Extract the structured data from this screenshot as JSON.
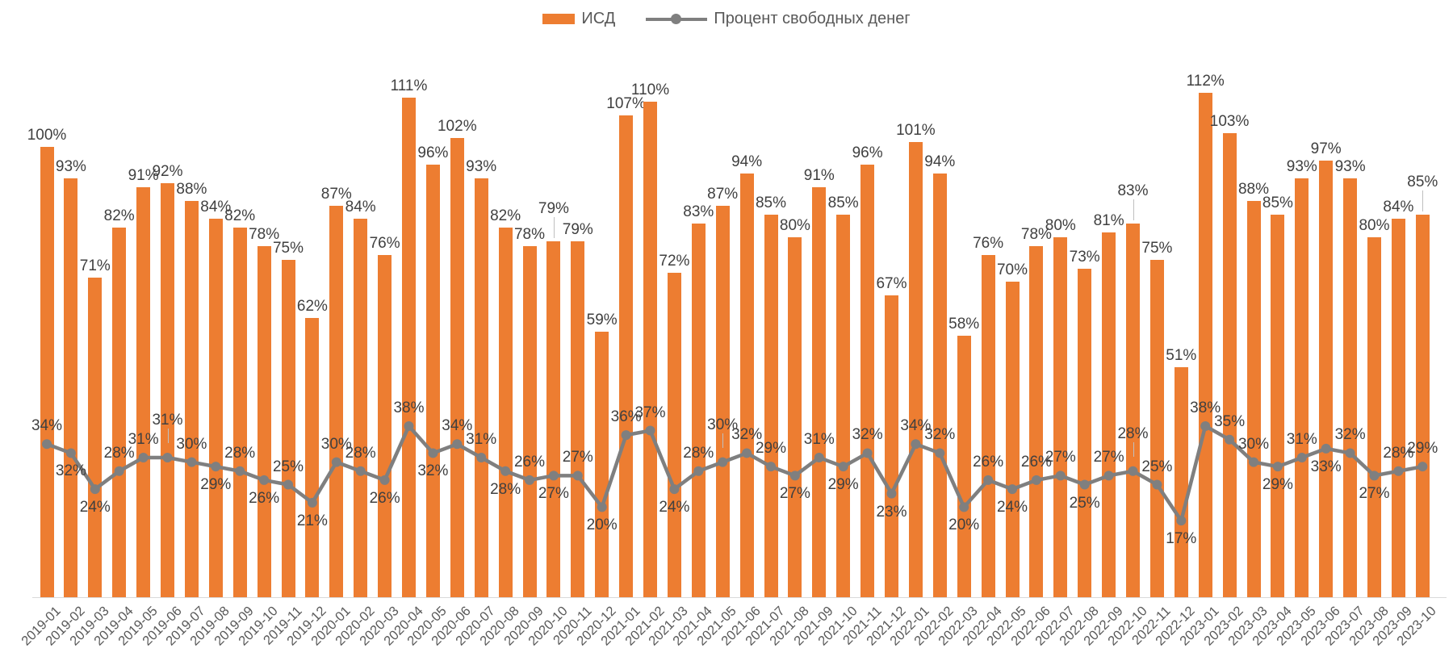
{
  "legend": {
    "bar_label": "ИСД",
    "line_label": "Процент свободных денег"
  },
  "colors": {
    "bar": "#ED7D31",
    "line": "#7F7F7F",
    "data_label": "#404040",
    "axis_label": "#595959",
    "axis_line": "#D9D9D9"
  },
  "chart_data": {
    "type": "bar",
    "subtype": "combo-bar-line",
    "title": "",
    "xlabel": "",
    "ylabel": "",
    "ylim": [
      0,
      120
    ],
    "grid": false,
    "y_axis_hidden": true,
    "legend_position": "top-center",
    "x_labels_rotation": -45,
    "label_suffix": "%",
    "categories": [
      "2019-01",
      "2019-02",
      "2019-03",
      "2019-04",
      "2019-05",
      "2019-06",
      "2019-07",
      "2019-08",
      "2019-09",
      "2019-10",
      "2019-11",
      "2019-12",
      "2020-01",
      "2020-02",
      "2020-03",
      "2020-04",
      "2020-05",
      "2020-06",
      "2020-07",
      "2020-08",
      "2020-09",
      "2020-10",
      "2020-11",
      "2020-12",
      "2021-01",
      "2021-02",
      "2021-03",
      "2021-04",
      "2021-05",
      "2021-06",
      "2021-07",
      "2021-08",
      "2021-09",
      "2021-10",
      "2021-11",
      "2021-12",
      "2022-01",
      "2022-02",
      "2022-03",
      "2022-04",
      "2022-05",
      "2022-06",
      "2022-07",
      "2022-08",
      "2022-09",
      "2022-10",
      "2022-11",
      "2022-12",
      "2023-01",
      "2023-02",
      "2023-03",
      "2023-04",
      "2023-05",
      "2023-06",
      "2023-07",
      "2023-08",
      "2023-09",
      "2023-10"
    ],
    "series": [
      {
        "name": "ИСД",
        "type": "bar",
        "color": "#ED7D31",
        "values": [
          100,
          93,
          71,
          82,
          91,
          92,
          88,
          84,
          82,
          78,
          75,
          62,
          87,
          84,
          76,
          111,
          96,
          102,
          93,
          82,
          78,
          79,
          79,
          59,
          107,
          110,
          72,
          83,
          87,
          94,
          85,
          80,
          91,
          85,
          96,
          67,
          101,
          94,
          58,
          76,
          70,
          78,
          80,
          73,
          81,
          83,
          75,
          51,
          112,
          103,
          88,
          85,
          93,
          97,
          93,
          80,
          84,
          85
        ],
        "labels_raised_with_leader": [
          "2020-10",
          "2022-10",
          "2023-10"
        ]
      },
      {
        "name": "Процент свободных денег",
        "type": "line",
        "color": "#7F7F7F",
        "values": [
          34,
          32,
          24,
          28,
          31,
          31,
          30,
          29,
          28,
          26,
          25,
          21,
          30,
          28,
          26,
          38,
          32,
          34,
          31,
          28,
          26,
          27,
          27,
          20,
          36,
          37,
          24,
          28,
          30,
          32,
          29,
          27,
          31,
          29,
          32,
          23,
          34,
          32,
          20,
          26,
          24,
          26,
          27,
          25,
          27,
          28,
          25,
          17,
          38,
          35,
          30,
          29,
          31,
          33,
          32,
          27,
          28,
          29
        ],
        "label_position": [
          "a",
          "b",
          "b",
          "a",
          "a",
          "a",
          "a",
          "b",
          "a",
          "b",
          "a",
          "b",
          "a",
          "a",
          "b",
          "a",
          "b",
          "a",
          "a",
          "b",
          "a",
          "b",
          "a",
          "b",
          "a",
          "a",
          "b",
          "a",
          "a",
          "a",
          "a",
          "b",
          "a",
          "b",
          "a",
          "b",
          "a",
          "a",
          "b",
          "a",
          "b",
          "a",
          "a",
          "b",
          "a",
          "a",
          "a",
          "b",
          "a",
          "a",
          "a",
          "b",
          "a",
          "b",
          "a",
          "b",
          "a",
          "a"
        ],
        "labels_raised_with_leader": [
          "2019-06",
          "2021-05",
          "2022-10"
        ]
      }
    ]
  }
}
